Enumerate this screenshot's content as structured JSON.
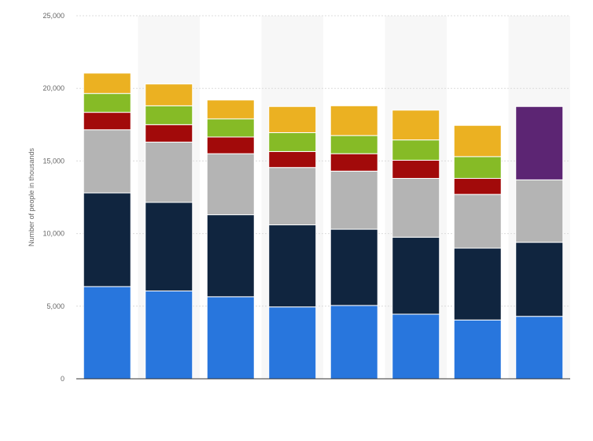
{
  "chart_data": {
    "type": "bar",
    "stacked": true,
    "title": "",
    "xlabel": "",
    "ylabel": "Number of people in thousands",
    "ylim": [
      0,
      25000
    ],
    "yticks": [
      0,
      5000,
      10000,
      15000,
      20000,
      25000
    ],
    "ytick_labels": [
      "0",
      "5,000",
      "10,000",
      "15,000",
      "20,000",
      "25,000"
    ],
    "categories": [
      "",
      "",
      "",
      "",
      "",
      "",
      "",
      ""
    ],
    "grid": true,
    "legend": "none",
    "series": [
      {
        "color": "#2876dd",
        "values": [
          6350,
          6050,
          5650,
          4950,
          5050,
          4450,
          4050,
          4300
        ]
      },
      {
        "color": "#10253f",
        "values": [
          6450,
          6100,
          5650,
          5650,
          5250,
          5300,
          4950,
          5100
        ]
      },
      {
        "color": "#b4b4b4",
        "values": [
          4350,
          4150,
          4200,
          3950,
          4000,
          4050,
          3700,
          4300
        ]
      },
      {
        "color": "#a20a0a",
        "values": [
          1200,
          1200,
          1150,
          1100,
          1200,
          1250,
          1100,
          0
        ]
      },
      {
        "color": "#86bb26",
        "values": [
          1300,
          1300,
          1250,
          1300,
          1250,
          1400,
          1500,
          0
        ]
      },
      {
        "color": "#ebb122",
        "values": [
          1400,
          1500,
          1300,
          1800,
          2050,
          2050,
          2150,
          0
        ]
      },
      {
        "color": "#5c2573",
        "values": [
          0,
          0,
          0,
          0,
          0,
          0,
          0,
          5050
        ]
      }
    ]
  }
}
